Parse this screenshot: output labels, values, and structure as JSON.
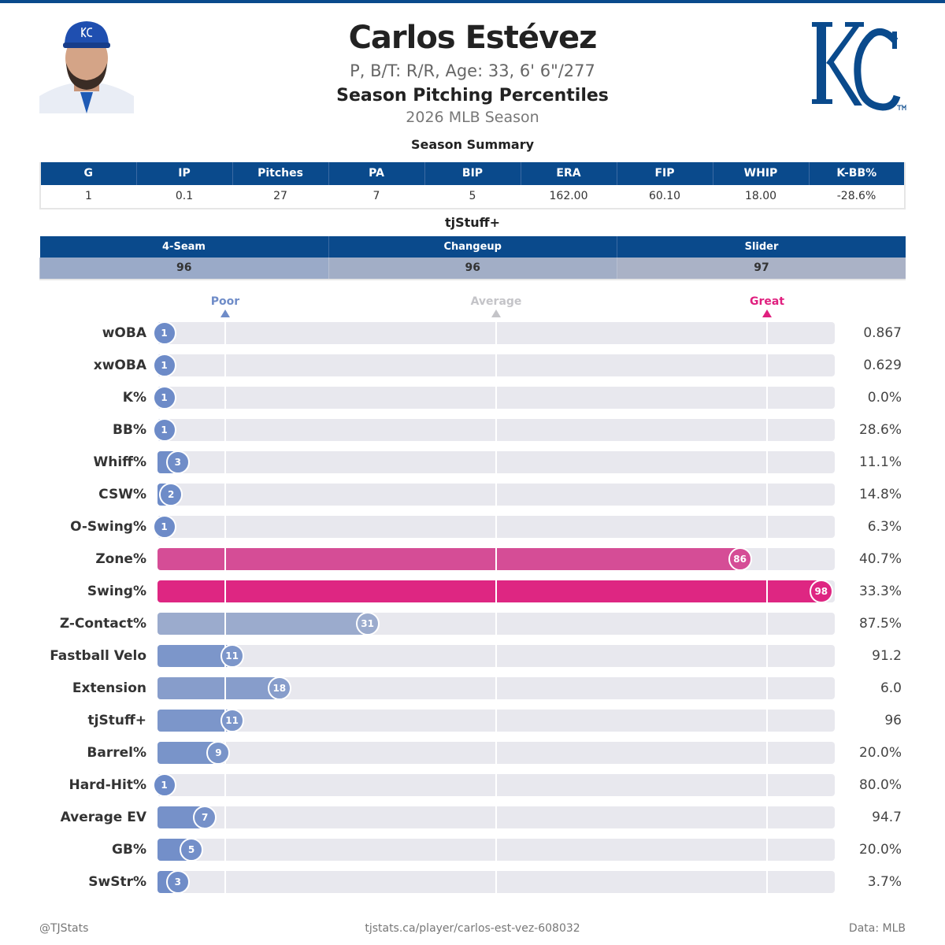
{
  "header": {
    "name": "Carlos Estévez",
    "bio": "P, B/T: R/R, Age: 33, 6' 6\"/277",
    "subtitle": "Season Pitching Percentiles",
    "season": "2026 MLB Season",
    "team_logo_text": "KC",
    "brand_color": "#0a4a8c"
  },
  "summary": {
    "title": "Season Summary",
    "headers": [
      "G",
      "IP",
      "Pitches",
      "PA",
      "BIP",
      "ERA",
      "FIP",
      "WHIP",
      "K-BB%"
    ],
    "values": [
      "1",
      "0.1",
      "27",
      "7",
      "5",
      "162.00",
      "60.10",
      "18.00",
      "-28.6%"
    ]
  },
  "stuff": {
    "title": "tjStuff+",
    "headers": [
      "4-Seam",
      "Changeup",
      "Slider"
    ],
    "values": [
      "96",
      "96",
      "97"
    ]
  },
  "scale": {
    "poor": "Poor",
    "average": "Average",
    "great": "Great",
    "poor_color": "#6f8cc8",
    "average_color": "#c4c4c8",
    "great_color": "#e0207f"
  },
  "chart_data": {
    "type": "bar",
    "orientation": "horizontal",
    "xlim": [
      0,
      100
    ],
    "reference_lines": [
      10,
      50,
      90
    ],
    "categories": [
      "wOBA",
      "xwOBA",
      "K%",
      "BB%",
      "Whiff%",
      "CSW%",
      "O-Swing%",
      "Zone%",
      "Swing%",
      "Z-Contact%",
      "Fastball Velo",
      "Extension",
      "tjStuff+",
      "Barrel%",
      "Hard-Hit%",
      "Average EV",
      "GB%",
      "SwStr%"
    ],
    "percentiles": [
      1,
      1,
      1,
      1,
      3,
      2,
      1,
      86,
      98,
      31,
      11,
      18,
      11,
      9,
      1,
      7,
      5,
      3
    ],
    "stat_values": [
      "0.867",
      "0.629",
      "0.0%",
      "28.6%",
      "11.1%",
      "14.8%",
      "6.3%",
      "40.7%",
      "33.3%",
      "87.5%",
      "91.2",
      "6.0",
      "96",
      "20.0%",
      "80.0%",
      "94.7",
      "20.0%",
      "3.7%"
    ]
  },
  "footer": {
    "left": "@TJStats",
    "center": "tjstats.ca/player/carlos-est-vez-608032",
    "right": "Data: MLB"
  }
}
